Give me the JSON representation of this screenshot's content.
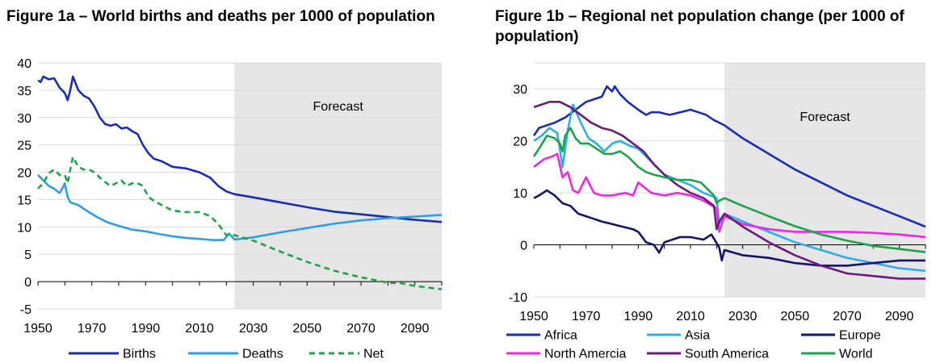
{
  "colors": {
    "forecast_shade": "#e6e6e6",
    "births": "#1c2db3",
    "deaths": "#2e9ee6",
    "net": "#1ea34a",
    "africa": "#1c2db3",
    "asia": "#2eaee6",
    "europe": "#14146e",
    "north_america": "#ee28e0",
    "south_america": "#6a1c78",
    "world": "#1ea34a"
  },
  "chart_data": [
    {
      "type": "line",
      "title": "Figure 1a – World births and deaths per 1000 of population",
      "xlim": [
        1950,
        2100
      ],
      "ylim": [
        -5,
        40
      ],
      "grid": true,
      "legend": "bottom",
      "xticks": [
        "1950",
        "1970",
        "1990",
        "2010",
        "2030",
        "2050",
        "2070",
        "2090"
      ],
      "yticks": [
        "40",
        "35",
        "30",
        "25",
        "20",
        "15",
        "10",
        "5",
        "0",
        "-5"
      ],
      "forecast": {
        "label": "Forecast",
        "from": 2023,
        "to": 2100
      },
      "series": [
        {
          "name": "Births",
          "color_key": "births",
          "style": "solid",
          "x": [
            1950,
            1951,
            1952,
            1954,
            1956,
            1958,
            1960,
            1961,
            1962,
            1963,
            1965,
            1967,
            1969,
            1971,
            1973,
            1975,
            1977,
            1979,
            1981,
            1983,
            1985,
            1987,
            1989,
            1991,
            1993,
            1996,
            2000,
            2005,
            2010,
            2014,
            2017,
            2020,
            2023,
            2030,
            2040,
            2050,
            2060,
            2070,
            2080,
            2090,
            2100
          ],
          "y": [
            36.8,
            36.5,
            37.5,
            37.0,
            37.2,
            35.5,
            34.5,
            33.2,
            35.0,
            37.5,
            35.0,
            34.0,
            33.5,
            32.0,
            30.0,
            28.8,
            28.5,
            28.8,
            28.0,
            28.2,
            27.5,
            27.0,
            25.0,
            23.5,
            22.5,
            22.0,
            21.0,
            20.7,
            20.0,
            19.0,
            17.5,
            16.5,
            16.0,
            15.4,
            14.5,
            13.6,
            12.8,
            12.3,
            11.8,
            11.3,
            10.9
          ]
        },
        {
          "name": "Deaths",
          "color_key": "deaths",
          "style": "solid",
          "x": [
            1950,
            1952,
            1954,
            1956,
            1958,
            1959,
            1960,
            1961,
            1962,
            1965,
            1968,
            1972,
            1976,
            1980,
            1985,
            1990,
            1995,
            2000,
            2005,
            2010,
            2015,
            2019,
            2021,
            2023,
            2030,
            2040,
            2050,
            2060,
            2070,
            2080,
            2090,
            2100
          ],
          "y": [
            19.5,
            18.5,
            17.5,
            17.0,
            16.2,
            17.0,
            18.0,
            15.5,
            14.5,
            14.0,
            13.0,
            11.8,
            10.8,
            10.2,
            9.5,
            9.2,
            8.7,
            8.3,
            8.0,
            7.8,
            7.6,
            7.6,
            8.8,
            7.7,
            8.1,
            9.0,
            9.8,
            10.6,
            11.2,
            11.6,
            11.9,
            12.2
          ]
        },
        {
          "name": "Net",
          "color_key": "net",
          "style": "dashed",
          "x": [
            1950,
            1952,
            1954,
            1956,
            1958,
            1960,
            1961,
            1962,
            1963,
            1965,
            1967,
            1969,
            1971,
            1973,
            1975,
            1977,
            1979,
            1981,
            1983,
            1985,
            1987,
            1989,
            1991,
            1993,
            1996,
            2000,
            2005,
            2010,
            2014,
            2017,
            2020,
            2023,
            2030,
            2040,
            2050,
            2060,
            2070,
            2080,
            2085,
            2090,
            2100
          ],
          "y": [
            17.0,
            18.0,
            19.8,
            20.5,
            19.5,
            19.5,
            18.0,
            20.5,
            22.8,
            21.0,
            20.5,
            20.5,
            20.0,
            19.0,
            18.2,
            17.5,
            18.0,
            18.5,
            17.5,
            18.0,
            18.0,
            17.5,
            15.5,
            14.8,
            14.0,
            13.0,
            12.7,
            12.7,
            12.0,
            10.5,
            8.5,
            8.5,
            7.5,
            5.5,
            3.6,
            2.0,
            0.8,
            -0.2,
            -0.3,
            -0.8,
            -1.4
          ]
        }
      ]
    },
    {
      "type": "line",
      "title": "Figure 1b – Regional net population change (per 1000 of population)",
      "xlim": [
        1950,
        2100
      ],
      "ylim": [
        -10,
        35
      ],
      "grid": true,
      "legend": "bottom",
      "xticks": [
        "1950",
        "1970",
        "1990",
        "2010",
        "2030",
        "2050",
        "2070",
        "2090"
      ],
      "yticks": [
        "30",
        "20",
        "10",
        "0",
        "-10"
      ],
      "forecast": {
        "label": "Forecast",
        "from": 2023,
        "to": 2100
      },
      "series": [
        {
          "name": "Africa",
          "color_key": "africa",
          "x": [
            1950,
            1952,
            1955,
            1958,
            1962,
            1966,
            1970,
            1973,
            1976,
            1978,
            1980,
            1981,
            1983,
            1986,
            1990,
            1993,
            1995,
            1998,
            2002,
            2006,
            2010,
            2013,
            2016,
            2019,
            2023,
            2030,
            2040,
            2050,
            2060,
            2070,
            2080,
            2090,
            2100
          ],
          "y": [
            21.0,
            22.5,
            23.0,
            23.5,
            24.5,
            26.0,
            27.5,
            28.0,
            28.5,
            30.5,
            29.5,
            30.5,
            29.0,
            27.5,
            26.0,
            25.0,
            25.5,
            25.5,
            25.0,
            25.5,
            26.0,
            25.5,
            25.0,
            24.0,
            23.0,
            20.5,
            17.5,
            14.5,
            12.0,
            9.5,
            7.5,
            5.5,
            3.5
          ]
        },
        {
          "name": "Asia",
          "color_key": "asia",
          "x": [
            1950,
            1953,
            1956,
            1959,
            1961,
            1963,
            1965,
            1968,
            1971,
            1974,
            1977,
            1980,
            1983,
            1987,
            1990,
            1995,
            2000,
            2005,
            2010,
            2015,
            2020,
            2021,
            2023,
            2030,
            2040,
            2050,
            2060,
            2070,
            2080,
            2090,
            2100
          ],
          "y": [
            20.0,
            21.0,
            22.5,
            21.5,
            15.0,
            22.0,
            27.0,
            23.5,
            20.5,
            19.5,
            18.0,
            19.5,
            20.0,
            19.0,
            18.5,
            16.0,
            13.5,
            12.5,
            11.5,
            10.0,
            9.0,
            4.0,
            6.0,
            4.5,
            2.5,
            0.5,
            -1.0,
            -2.5,
            -3.5,
            -4.5,
            -5.0
          ]
        },
        {
          "name": "Europe",
          "color_key": "europe",
          "x": [
            1950,
            1952,
            1955,
            1958,
            1961,
            1964,
            1967,
            1970,
            1973,
            1976,
            1980,
            1984,
            1988,
            1990,
            1993,
            1996,
            1998,
            2000,
            2003,
            2006,
            2010,
            2015,
            2018,
            2021,
            2022,
            2023,
            2030,
            2040,
            2050,
            2060,
            2070,
            2080,
            2090,
            2100
          ],
          "y": [
            9.0,
            9.5,
            10.5,
            9.5,
            8.0,
            7.5,
            6.0,
            5.5,
            5.0,
            4.5,
            4.0,
            3.5,
            3.0,
            2.5,
            0.5,
            0.0,
            -1.5,
            0.5,
            1.0,
            1.5,
            1.5,
            1.0,
            2.0,
            -0.5,
            -3.0,
            -1.0,
            -2.0,
            -2.5,
            -3.5,
            -4.0,
            -4.0,
            -3.5,
            -3.0,
            -3.0
          ]
        },
        {
          "name": "North Amercia",
          "color_key": "north_america",
          "x": [
            1950,
            1954,
            1957,
            1959,
            1961,
            1963,
            1965,
            1967,
            1970,
            1973,
            1976,
            1980,
            1985,
            1988,
            1990,
            1995,
            2000,
            2005,
            2010,
            2015,
            2020,
            2021,
            2023,
            2030,
            2040,
            2050,
            2060,
            2070,
            2080,
            2090,
            2100
          ],
          "y": [
            15.0,
            16.5,
            17.0,
            17.5,
            13.0,
            14.0,
            10.5,
            10.0,
            13.0,
            10.0,
            9.5,
            9.5,
            10.0,
            9.5,
            12.0,
            10.0,
            9.5,
            10.0,
            9.5,
            8.5,
            7.0,
            2.5,
            5.5,
            4.0,
            3.0,
            2.5,
            2.5,
            2.5,
            2.3,
            2.0,
            1.5
          ]
        },
        {
          "name": "South America",
          "color_key": "south_america",
          "x": [
            1950,
            1953,
            1956,
            1960,
            1964,
            1968,
            1972,
            1976,
            1980,
            1984,
            1988,
            1992,
            1996,
            2000,
            2005,
            2010,
            2015,
            2019,
            2020,
            2021,
            2023,
            2030,
            2040,
            2050,
            2060,
            2070,
            2080,
            2090,
            2100
          ],
          "y": [
            26.5,
            27.0,
            27.5,
            27.5,
            26.5,
            25.0,
            23.5,
            22.5,
            22.0,
            21.0,
            19.5,
            18.0,
            15.5,
            13.5,
            11.5,
            10.0,
            9.0,
            7.5,
            3.0,
            4.5,
            6.0,
            3.5,
            0.5,
            -2.0,
            -4.0,
            -5.5,
            -6.0,
            -6.5,
            -6.5
          ]
        },
        {
          "name": "World",
          "color_key": "world",
          "x": [
            1950,
            1952,
            1955,
            1958,
            1960,
            1961,
            1962,
            1964,
            1966,
            1968,
            1971,
            1974,
            1977,
            1980,
            1983,
            1986,
            1990,
            1993,
            1996,
            2000,
            2005,
            2010,
            2014,
            2017,
            2019,
            2020,
            2021,
            2023,
            2030,
            2040,
            2050,
            2060,
            2070,
            2080,
            2090,
            2100
          ],
          "y": [
            17.0,
            18.5,
            21.0,
            20.5,
            19.5,
            18.0,
            21.0,
            22.5,
            20.5,
            19.5,
            19.5,
            18.5,
            17.5,
            17.5,
            18.0,
            17.0,
            15.0,
            14.0,
            13.5,
            13.0,
            12.5,
            12.5,
            12.0,
            10.5,
            9.5,
            8.0,
            8.5,
            9.0,
            7.5,
            5.5,
            3.6,
            2.0,
            0.8,
            -0.2,
            -0.8,
            -1.4
          ]
        }
      ]
    }
  ]
}
